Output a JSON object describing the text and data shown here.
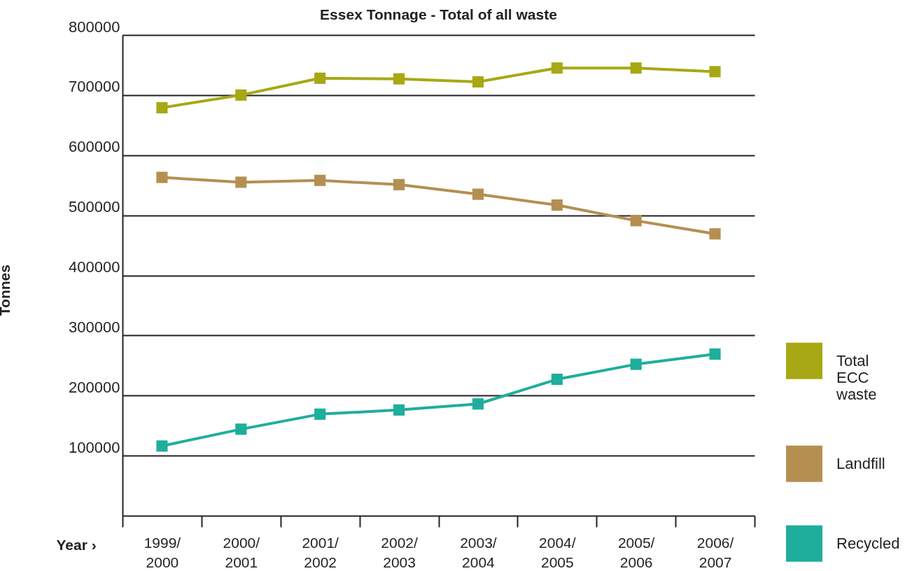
{
  "chart_data": {
    "type": "line",
    "title": "Essex Tonnage - Total of all waste",
    "xlabel": "Year ›",
    "ylabel": "Tonnes",
    "categories": [
      "1999/2000",
      "2000/2001",
      "2001/2002",
      "2002/2003",
      "2003/2004",
      "2004/2005",
      "2005/2006",
      "2006/2007"
    ],
    "series": [
      {
        "name": "Total ECC waste",
        "color": "#a8a814",
        "values": [
          679000,
          700000,
          728000,
          727000,
          722000,
          745000,
          745000,
          739000
        ]
      },
      {
        "name": "Landfill",
        "color": "#b58f52",
        "values": [
          563000,
          555000,
          558000,
          551000,
          535000,
          517000,
          491000,
          469000
        ]
      },
      {
        "name": "Recycled",
        "color": "#1fae9c",
        "values": [
          116000,
          144000,
          169000,
          176000,
          186000,
          227000,
          252000,
          269000
        ]
      }
    ],
    "ylim": [
      0,
      800000
    ],
    "yticks": [
      100000,
      200000,
      300000,
      400000,
      500000,
      600000,
      700000,
      800000
    ],
    "grid": "y",
    "legend": "right",
    "marker": "square",
    "line_style": "solid"
  }
}
